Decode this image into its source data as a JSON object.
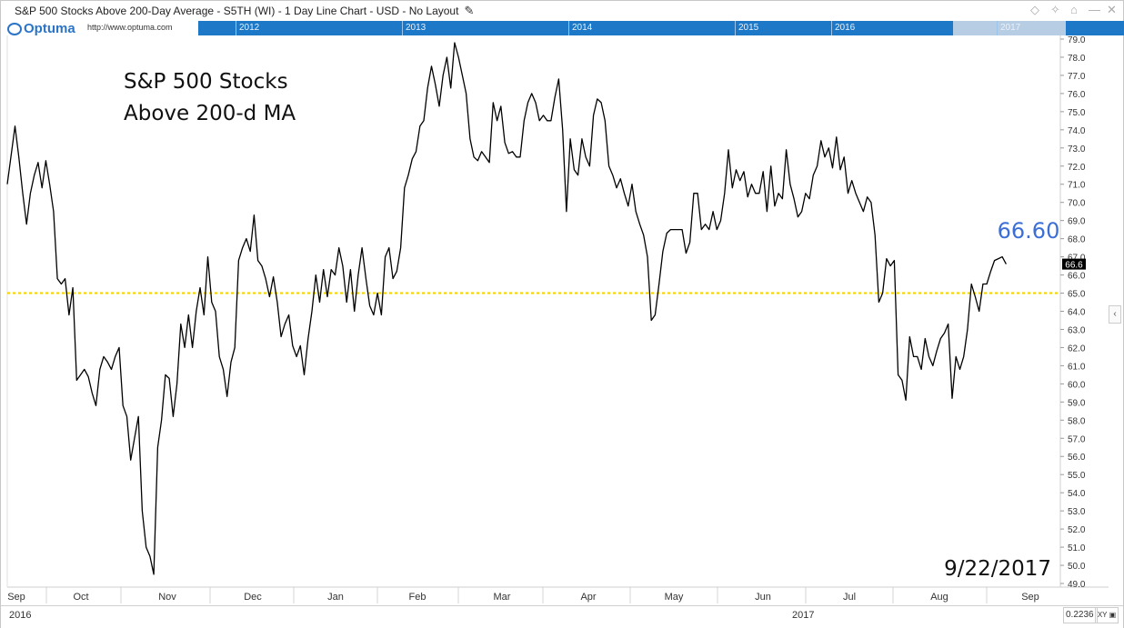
{
  "window": {
    "title": "S&P 500 Stocks Above 200-Day Average - S5TH (WI) - 1 Day Line Chart - USD - No Layout",
    "toolbar_icons": [
      "diamond-icon",
      "pin-icon",
      "tag-icon",
      "minimize-icon",
      "close-icon"
    ]
  },
  "brand": {
    "logo_text": "Optuma",
    "url": "http://www.optuma.com"
  },
  "navigator": {
    "years": [
      "2012",
      "2013",
      "2014",
      "2015",
      "2016",
      "2017"
    ]
  },
  "chart_data": {
    "type": "line",
    "title_lines": [
      "S&P 500 Stocks",
      "Above 200-d MA"
    ],
    "last_value_label": "66.60",
    "date_label": "9/22/2017",
    "price_tag": "66.6",
    "reference_line": 65.0,
    "reference_color": "#f2d200",
    "line_color": "#000000",
    "last_label_color": "#3b6fd6",
    "ylim": [
      48.8,
      79.2
    ],
    "y_ticks": [
      "49.0",
      "50.0",
      "51.0",
      "52.0",
      "53.0",
      "54.0",
      "55.0",
      "56.0",
      "57.0",
      "58.0",
      "59.0",
      "60.0",
      "61.0",
      "62.0",
      "63.0",
      "64.0",
      "65.0",
      "66.0",
      "67.0",
      "68.0",
      "69.0",
      "70.0",
      "71.0",
      "72.0",
      "73.0",
      "74.0",
      "75.0",
      "76.0",
      "77.0",
      "78.0",
      "79.0"
    ],
    "x_months": [
      "Sep",
      "Oct",
      "Nov",
      "Dec",
      "Jan",
      "Feb",
      "Mar",
      "Apr",
      "May",
      "Jun",
      "Jul",
      "Aug",
      "Sep"
    ],
    "x_years": [
      "2016",
      "2017"
    ],
    "x_range_days": [
      0,
      270
    ],
    "month_start_days": [
      0,
      22,
      55,
      77,
      112,
      140,
      159,
      191,
      211,
      243,
      265,
      289,
      319
    ],
    "month_label_days": [
      0,
      27,
      59,
      90,
      121,
      152,
      180,
      211,
      241,
      272,
      302,
      333,
      364
    ],
    "series": [
      {
        "points": [
          [
            0,
            71.0
          ],
          [
            2,
            74.2
          ],
          [
            3,
            72.5
          ],
          [
            4,
            70.5
          ],
          [
            5,
            68.8
          ],
          [
            6,
            70.5
          ],
          [
            7,
            71.5
          ],
          [
            8,
            72.2
          ],
          [
            9,
            70.8
          ],
          [
            10,
            72.3
          ],
          [
            11,
            71.0
          ],
          [
            12,
            69.5
          ],
          [
            13,
            65.8
          ],
          [
            14,
            65.5
          ],
          [
            15,
            65.8
          ],
          [
            16,
            63.8
          ],
          [
            17,
            65.3
          ],
          [
            18,
            60.2
          ],
          [
            19,
            60.5
          ],
          [
            20,
            60.8
          ],
          [
            21,
            60.4
          ],
          [
            22,
            59.5
          ],
          [
            23,
            58.8
          ],
          [
            24,
            60.8
          ],
          [
            25,
            61.5
          ],
          [
            26,
            61.2
          ],
          [
            27,
            60.8
          ],
          [
            28,
            61.5
          ],
          [
            29,
            62.0
          ],
          [
            30,
            58.8
          ],
          [
            31,
            58.2
          ],
          [
            32,
            55.8
          ],
          [
            33,
            57.0
          ],
          [
            34,
            58.2
          ],
          [
            35,
            53.0
          ],
          [
            36,
            51.0
          ],
          [
            37,
            50.5
          ],
          [
            38,
            49.5
          ],
          [
            39,
            56.5
          ],
          [
            40,
            58.0
          ],
          [
            41,
            60.5
          ],
          [
            42,
            60.3
          ],
          [
            43,
            58.2
          ],
          [
            44,
            60.0
          ],
          [
            45,
            63.3
          ],
          [
            46,
            62.0
          ],
          [
            47,
            63.8
          ],
          [
            48,
            62.0
          ],
          [
            49,
            64.0
          ],
          [
            50,
            65.3
          ],
          [
            51,
            63.8
          ],
          [
            52,
            67.0
          ],
          [
            53,
            64.5
          ],
          [
            54,
            64.0
          ],
          [
            55,
            61.5
          ],
          [
            56,
            60.8
          ],
          [
            57,
            59.3
          ],
          [
            58,
            61.2
          ],
          [
            59,
            62.0
          ],
          [
            60,
            66.8
          ],
          [
            61,
            67.5
          ],
          [
            62,
            68.0
          ],
          [
            63,
            67.3
          ],
          [
            64,
            69.3
          ],
          [
            65,
            66.8
          ],
          [
            66,
            66.5
          ],
          [
            67,
            65.8
          ],
          [
            68,
            64.8
          ],
          [
            69,
            65.9
          ],
          [
            70,
            64.5
          ],
          [
            71,
            62.6
          ],
          [
            72,
            63.3
          ],
          [
            73,
            63.8
          ],
          [
            74,
            62.1
          ],
          [
            75,
            61.5
          ],
          [
            76,
            62.1
          ],
          [
            77,
            60.5
          ],
          [
            78,
            62.5
          ],
          [
            79,
            64.0
          ],
          [
            80,
            66.0
          ],
          [
            81,
            64.5
          ],
          [
            82,
            66.3
          ],
          [
            83,
            64.8
          ],
          [
            84,
            66.3
          ],
          [
            85,
            66.0
          ],
          [
            86,
            67.5
          ],
          [
            87,
            66.5
          ],
          [
            88,
            64.5
          ],
          [
            89,
            66.3
          ],
          [
            90,
            64.0
          ],
          [
            91,
            66.0
          ],
          [
            92,
            67.5
          ],
          [
            93,
            65.8
          ],
          [
            94,
            64.3
          ],
          [
            95,
            63.8
          ],
          [
            96,
            65.0
          ],
          [
            97,
            63.8
          ],
          [
            98,
            67.0
          ],
          [
            99,
            67.5
          ],
          [
            100,
            65.8
          ],
          [
            101,
            66.2
          ],
          [
            102,
            67.5
          ],
          [
            103,
            70.8
          ],
          [
            104,
            71.5
          ],
          [
            105,
            72.4
          ],
          [
            106,
            72.8
          ],
          [
            107,
            74.2
          ],
          [
            108,
            74.5
          ],
          [
            109,
            76.3
          ],
          [
            110,
            77.5
          ],
          [
            111,
            76.5
          ],
          [
            112,
            75.3
          ],
          [
            113,
            77.0
          ],
          [
            114,
            78.0
          ],
          [
            115,
            76.3
          ],
          [
            116,
            78.8
          ],
          [
            117,
            78.0
          ],
          [
            118,
            77.0
          ],
          [
            119,
            76.0
          ],
          [
            120,
            73.5
          ],
          [
            121,
            72.5
          ],
          [
            122,
            72.3
          ],
          [
            123,
            72.8
          ],
          [
            124,
            72.5
          ],
          [
            125,
            72.2
          ],
          [
            126,
            75.5
          ],
          [
            127,
            74.5
          ],
          [
            128,
            75.3
          ],
          [
            129,
            73.3
          ],
          [
            130,
            72.7
          ],
          [
            131,
            72.8
          ],
          [
            132,
            72.5
          ],
          [
            133,
            72.5
          ],
          [
            134,
            74.5
          ],
          [
            135,
            75.5
          ],
          [
            136,
            76.0
          ],
          [
            137,
            75.5
          ],
          [
            138,
            74.5
          ],
          [
            139,
            74.8
          ],
          [
            140,
            74.5
          ],
          [
            141,
            74.5
          ],
          [
            142,
            75.8
          ],
          [
            143,
            76.8
          ],
          [
            144,
            74.0
          ],
          [
            145,
            69.5
          ],
          [
            146,
            73.5
          ],
          [
            147,
            71.8
          ],
          [
            148,
            71.5
          ],
          [
            149,
            73.5
          ],
          [
            150,
            72.5
          ],
          [
            151,
            72.0
          ],
          [
            152,
            74.8
          ],
          [
            153,
            75.7
          ],
          [
            154,
            75.5
          ],
          [
            155,
            74.5
          ],
          [
            156,
            72.0
          ],
          [
            157,
            71.5
          ],
          [
            158,
            70.8
          ],
          [
            159,
            71.3
          ],
          [
            160,
            70.5
          ],
          [
            161,
            69.8
          ],
          [
            162,
            71.0
          ],
          [
            163,
            69.5
          ],
          [
            164,
            68.8
          ],
          [
            165,
            68.2
          ],
          [
            166,
            67.0
          ],
          [
            167,
            63.5
          ],
          [
            168,
            63.8
          ],
          [
            169,
            65.5
          ],
          [
            170,
            67.3
          ],
          [
            171,
            68.3
          ],
          [
            172,
            68.5
          ],
          [
            173,
            68.5
          ],
          [
            174,
            68.5
          ],
          [
            175,
            68.5
          ],
          [
            176,
            67.2
          ],
          [
            177,
            67.8
          ],
          [
            178,
            70.5
          ],
          [
            179,
            70.5
          ],
          [
            180,
            68.5
          ],
          [
            181,
            68.8
          ],
          [
            182,
            68.5
          ],
          [
            183,
            69.5
          ],
          [
            184,
            68.5
          ],
          [
            185,
            69.0
          ],
          [
            186,
            70.5
          ],
          [
            187,
            72.9
          ],
          [
            188,
            70.8
          ],
          [
            189,
            71.8
          ],
          [
            190,
            71.2
          ],
          [
            191,
            71.7
          ],
          [
            192,
            70.3
          ],
          [
            193,
            71.0
          ],
          [
            194,
            70.5
          ],
          [
            195,
            70.5
          ],
          [
            196,
            71.7
          ],
          [
            197,
            69.5
          ],
          [
            198,
            72.0
          ],
          [
            199,
            69.8
          ],
          [
            200,
            70.5
          ],
          [
            201,
            70.2
          ],
          [
            202,
            72.9
          ],
          [
            203,
            71.0
          ],
          [
            204,
            70.2
          ],
          [
            205,
            69.2
          ],
          [
            206,
            69.5
          ],
          [
            207,
            70.5
          ],
          [
            208,
            70.2
          ],
          [
            209,
            71.5
          ],
          [
            210,
            72.0
          ],
          [
            211,
            73.4
          ],
          [
            212,
            72.5
          ],
          [
            213,
            73.0
          ],
          [
            214,
            71.9
          ],
          [
            215,
            73.6
          ],
          [
            216,
            71.8
          ],
          [
            217,
            72.5
          ],
          [
            218,
            70.5
          ],
          [
            219,
            71.2
          ],
          [
            220,
            70.5
          ],
          [
            221,
            70.0
          ],
          [
            222,
            69.5
          ],
          [
            223,
            70.3
          ],
          [
            224,
            70.0
          ],
          [
            225,
            68.2
          ],
          [
            226,
            64.5
          ],
          [
            227,
            65.0
          ],
          [
            228,
            66.9
          ],
          [
            229,
            66.5
          ],
          [
            230,
            66.8
          ],
          [
            231,
            60.5
          ],
          [
            232,
            60.2
          ],
          [
            233,
            59.1
          ],
          [
            234,
            62.6
          ],
          [
            235,
            61.5
          ],
          [
            236,
            61.5
          ],
          [
            237,
            60.8
          ],
          [
            238,
            62.5
          ],
          [
            239,
            61.5
          ],
          [
            240,
            61.0
          ],
          [
            241,
            61.8
          ],
          [
            242,
            62.5
          ],
          [
            243,
            62.8
          ],
          [
            244,
            63.3
          ],
          [
            245,
            59.2
          ],
          [
            246,
            61.5
          ],
          [
            247,
            60.8
          ],
          [
            248,
            61.5
          ],
          [
            249,
            63.0
          ],
          [
            250,
            65.5
          ],
          [
            251,
            64.8
          ],
          [
            252,
            64.0
          ],
          [
            253,
            65.5
          ],
          [
            254,
            65.5
          ],
          [
            255,
            66.2
          ],
          [
            256,
            66.8
          ],
          [
            257,
            66.9
          ],
          [
            258,
            67.0
          ],
          [
            259,
            66.6
          ]
        ]
      }
    ]
  }
}
